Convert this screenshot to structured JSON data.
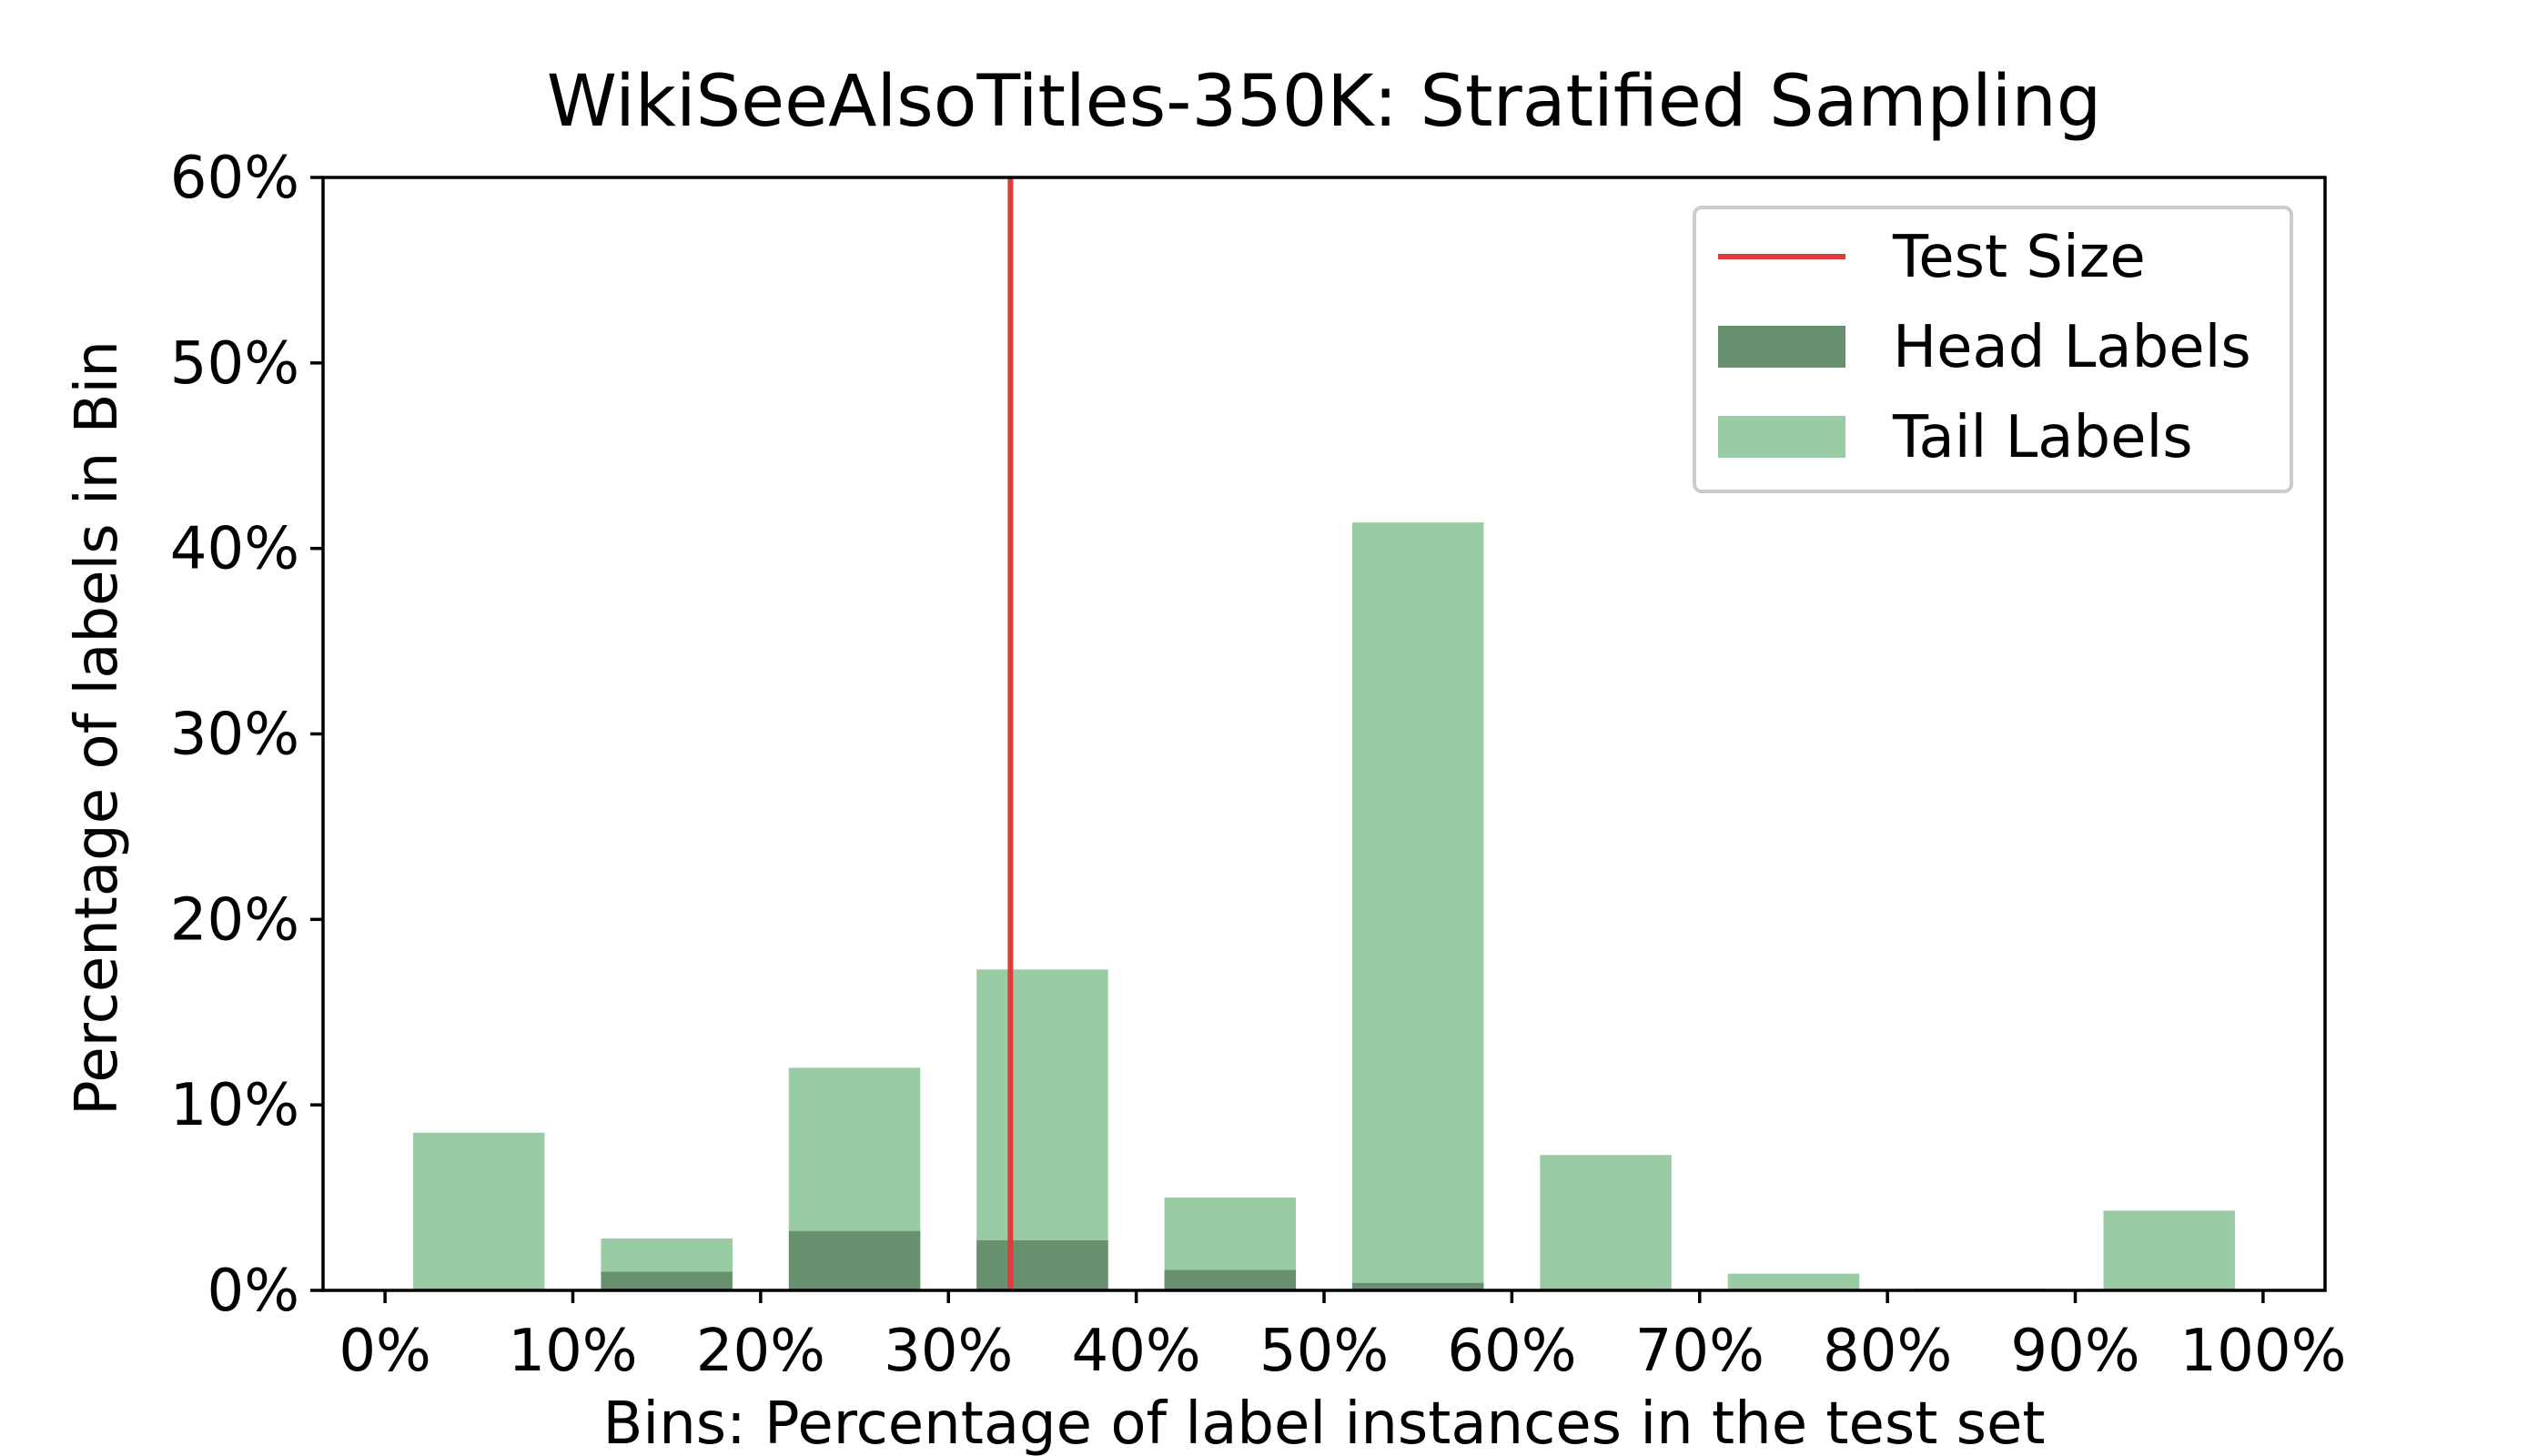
{
  "chart_data": {
    "type": "bar",
    "title": "WikiSeeAlsoTitles-350K: Stratified Sampling",
    "xlabel": "Bins: Percentage of label instances in the test set",
    "ylabel": "Percentage of labels in Bin",
    "x_ticks": [
      "0%",
      "10%",
      "20%",
      "30%",
      "40%",
      "50%",
      "60%",
      "70%",
      "80%",
      "90%",
      "100%"
    ],
    "y_ticks": [
      "0%",
      "10%",
      "20%",
      "30%",
      "40%",
      "50%",
      "60%"
    ],
    "xlim": [
      -0.033,
      1.033
    ],
    "ylim": [
      0,
      60
    ],
    "bin_centers": [
      0.05,
      0.15,
      0.25,
      0.35,
      0.45,
      0.55,
      0.65,
      0.75,
      0.85,
      0.95
    ],
    "bar_width": 0.07,
    "series": [
      {
        "name": "Tail Labels",
        "color": "#99cba4",
        "values": [
          8.5,
          2.8,
          12.0,
          17.3,
          5.0,
          41.4,
          7.3,
          0.9,
          0.1,
          4.3
        ]
      },
      {
        "name": "Head Labels",
        "color": "#67906e",
        "values": [
          0.0,
          1.0,
          3.2,
          2.7,
          1.1,
          0.4,
          0.0,
          0.0,
          0.0,
          0.0
        ]
      }
    ],
    "reference_line": {
      "name": "Test Size",
      "x": 0.333,
      "color": "#e03b3b"
    },
    "legend": {
      "position": "top-right",
      "order": [
        "Test Size",
        "Head Labels",
        "Tail Labels"
      ]
    },
    "grid": false
  }
}
